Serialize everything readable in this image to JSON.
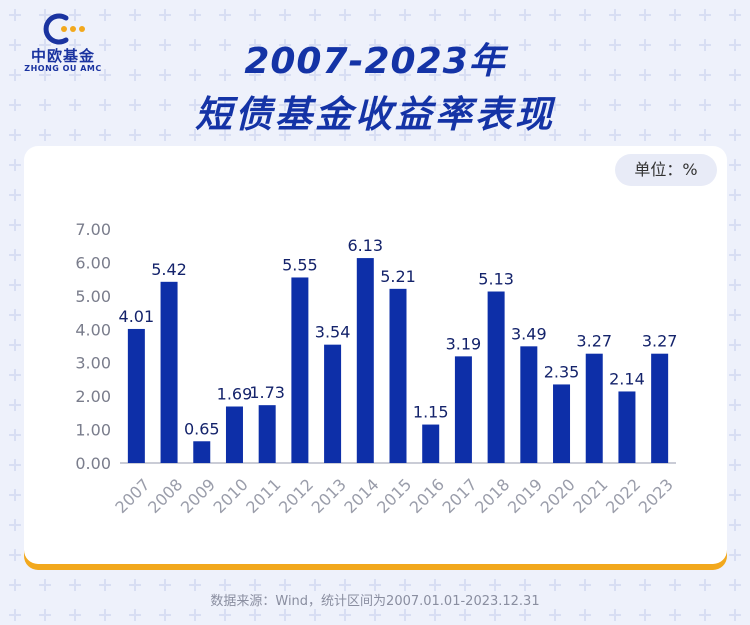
{
  "brand": {
    "name_cn": "中欧基金",
    "name_en": "ZHONG OU AMC"
  },
  "title": {
    "line1": "2007-2023年",
    "line2": "短债基金收益率表现"
  },
  "unit_label": "单位：%",
  "source": "数据来源：Wind，统计区间为2007.01.01-2023.12.31",
  "colors": {
    "bar": "#0d2fa8",
    "title": "#1433a6",
    "accent": "#f2a81d",
    "background": "#eef1fb"
  },
  "chart_data": {
    "type": "bar",
    "categories": [
      "2007",
      "2008",
      "2009",
      "2010",
      "2011",
      "2012",
      "2013",
      "2014",
      "2015",
      "2016",
      "2017",
      "2018",
      "2019",
      "2020",
      "2021",
      "2022",
      "2023"
    ],
    "values": [
      4.01,
      5.42,
      0.65,
      1.69,
      1.73,
      5.55,
      3.54,
      6.13,
      5.21,
      1.15,
      3.19,
      5.13,
      3.49,
      2.35,
      3.27,
      2.14,
      3.27
    ],
    "value_labels": [
      "4.01",
      "5.42",
      "0.65",
      "1.69",
      "1.73",
      "5.55",
      "3.54",
      "6.13",
      "5.21",
      "1.15",
      "3.19",
      "5.13",
      "3.49",
      "2.35",
      "3.27",
      "2.14",
      "3.27"
    ],
    "y_ticks": [
      "0.00",
      "1.00",
      "2.00",
      "3.00",
      "4.00",
      "5.00",
      "6.00",
      "7.00"
    ],
    "ylim": [
      0,
      7
    ],
    "grid": false
  }
}
